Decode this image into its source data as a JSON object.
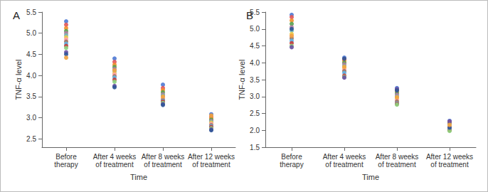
{
  "chart_data": [
    {
      "type": "scatter",
      "title": "A",
      "x_label": "Time",
      "y_label": "TNF-α level",
      "categories": [
        "Before therapy",
        "After 4 weeks of treatment",
        "After 8 weeks of treatment",
        "After 12 weeks of treatment"
      ],
      "ylim": [
        2.3,
        5.5
      ],
      "yticks": [
        2.5,
        {
          "value": 3,
          "label": "3.0"
        },
        3.5,
        {
          "value": 4,
          "label": "4.0"
        },
        4.5,
        {
          "value": 5,
          "label": "5.0"
        },
        5.5
      ],
      "grid": false,
      "series": [
        {
          "color": "#4e79d4",
          "values": [
            5.28,
            4.4,
            3.78,
            3.08
          ]
        },
        {
          "color": "#e15759",
          "values": [
            5.2,
            4.32,
            3.7,
            3.02
          ]
        },
        {
          "color": "#f28e2b",
          "values": [
            5.12,
            4.25,
            3.65,
            2.98
          ]
        },
        {
          "color": "#59a14f",
          "values": [
            5.05,
            4.2,
            3.6,
            2.95
          ]
        },
        {
          "color": "#b07aa1",
          "values": [
            5.0,
            4.15,
            3.55,
            2.92
          ]
        },
        {
          "color": "#76b7b2",
          "values": [
            4.95,
            4.1,
            3.52,
            2.9
          ]
        },
        {
          "color": "#edc948",
          "values": [
            4.9,
            4.05,
            3.48,
            2.88
          ]
        },
        {
          "color": "#ff9da7",
          "values": [
            4.85,
            4.02,
            3.45,
            2.85
          ]
        },
        {
          "color": "#9c755f",
          "values": [
            4.8,
            3.98,
            3.42,
            2.82
          ]
        },
        {
          "color": "#5fb3e6",
          "values": [
            4.75,
            3.95,
            3.4,
            2.8
          ]
        },
        {
          "color": "#c43c39",
          "values": [
            4.7,
            3.9,
            3.38,
            2.78
          ]
        },
        {
          "color": "#8cd17d",
          "values": [
            4.65,
            3.85,
            3.35,
            2.75
          ]
        },
        {
          "color": "#6a51a3",
          "values": [
            4.55,
            3.75,
            3.32,
            2.72
          ]
        },
        {
          "color": "#2f5597",
          "values": [
            4.5,
            3.72,
            3.3,
            2.7
          ]
        },
        {
          "color": "#f1a340",
          "values": [
            4.42,
            4.12,
            3.5,
            3.05
          ]
        }
      ]
    },
    {
      "type": "scatter",
      "title": "B",
      "x_label": "Time",
      "y_label": "TNF-α level",
      "categories": [
        "Before therapy",
        "After 4 weeks of treatment",
        "After 8 weeks of treatment",
        "After 12 weeks of treatment"
      ],
      "ylim": [
        1.5,
        5.5
      ],
      "yticks": [
        1.5,
        {
          "value": 2,
          "label": "2.0"
        },
        2.5,
        {
          "value": 3,
          "label": "3.0"
        },
        3.5,
        {
          "value": 4,
          "label": "4.0"
        },
        4.5,
        {
          "value": 5,
          "label": "5.0"
        },
        5.5
      ],
      "grid": false,
      "series": [
        {
          "color": "#4e79d4",
          "values": [
            5.42,
            4.15,
            3.25,
            2.28
          ]
        },
        {
          "color": "#e15759",
          "values": [
            5.35,
            4.1,
            3.2,
            2.25
          ]
        },
        {
          "color": "#f28e2b",
          "values": [
            5.25,
            4.05,
            3.15,
            2.22
          ]
        },
        {
          "color": "#59a14f",
          "values": [
            5.15,
            4.0,
            3.1,
            2.2
          ]
        },
        {
          "color": "#b07aa1",
          "values": [
            5.05,
            3.95,
            3.05,
            2.18
          ]
        },
        {
          "color": "#76b7b2",
          "values": [
            4.95,
            3.9,
            3.0,
            2.15
          ]
        },
        {
          "color": "#edc948",
          "values": [
            4.85,
            3.85,
            2.95,
            2.12
          ]
        },
        {
          "color": "#ff9da7",
          "values": [
            4.78,
            3.8,
            2.9,
            2.1
          ]
        },
        {
          "color": "#9c755f",
          "values": [
            4.72,
            3.75,
            2.85,
            2.05
          ]
        },
        {
          "color": "#5fb3e6",
          "values": [
            4.65,
            3.7,
            2.8,
            2.02
          ]
        },
        {
          "color": "#c43c39",
          "values": [
            4.58,
            3.62,
            2.78,
            2.0
          ]
        },
        {
          "color": "#8cd17d",
          "values": [
            4.5,
            3.58,
            2.76,
            1.98
          ]
        },
        {
          "color": "#6a51a3",
          "values": [
            4.46,
            3.56,
            3.22,
            2.26
          ]
        },
        {
          "color": "#2f5597",
          "values": [
            5.0,
            4.12,
            3.18,
            2.08
          ]
        },
        {
          "color": "#f1a340",
          "values": [
            4.8,
            3.88,
            2.98,
            2.16
          ]
        }
      ]
    }
  ]
}
